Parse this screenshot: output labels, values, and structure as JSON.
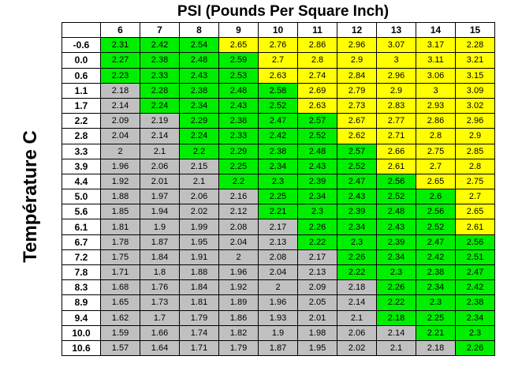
{
  "title": "PSI (Pounds Per Square Inch)",
  "y_axis_label": "Température C",
  "colors": {
    "green": "#00ee00",
    "yellow": "#ffff00",
    "gray": "#c0c0c0"
  },
  "psi": [
    "6",
    "7",
    "8",
    "9",
    "10",
    "11",
    "12",
    "13",
    "14",
    "15"
  ],
  "temps": [
    "-0.6",
    "0.0",
    "0.6",
    "1.1",
    "1.7",
    "2.2",
    "2.8",
    "3.3",
    "3.9",
    "4.4",
    "5.0",
    "5.6",
    "6.1",
    "6.7",
    "7.2",
    "7.8",
    "8.3",
    "8.9",
    "9.4",
    "10.0",
    "10.6"
  ],
  "cells": [
    [
      [
        "2.31",
        "g"
      ],
      [
        "2.42",
        "g"
      ],
      [
        "2.54",
        "g"
      ],
      [
        "2.65",
        "y"
      ],
      [
        "2.76",
        "y"
      ],
      [
        "2.86",
        "y"
      ],
      [
        "2.96",
        "y"
      ],
      [
        "3.07",
        "y"
      ],
      [
        "3.17",
        "y"
      ],
      [
        "2.28",
        "y"
      ]
    ],
    [
      [
        "2.27",
        "g"
      ],
      [
        "2.38",
        "g"
      ],
      [
        "2.48",
        "g"
      ],
      [
        "2.59",
        "g"
      ],
      [
        "2.7",
        "y"
      ],
      [
        "2.8",
        "y"
      ],
      [
        "2.9",
        "y"
      ],
      [
        "3",
        "y"
      ],
      [
        "3.11",
        "y"
      ],
      [
        "3.21",
        "y"
      ]
    ],
    [
      [
        "2.23",
        "g"
      ],
      [
        "2.33",
        "g"
      ],
      [
        "2.43",
        "g"
      ],
      [
        "2.53",
        "g"
      ],
      [
        "2.63",
        "y"
      ],
      [
        "2.74",
        "y"
      ],
      [
        "2.84",
        "y"
      ],
      [
        "2.96",
        "y"
      ],
      [
        "3.06",
        "y"
      ],
      [
        "3.15",
        "y"
      ]
    ],
    [
      [
        "2.18",
        "s"
      ],
      [
        "2.28",
        "g"
      ],
      [
        "2.38",
        "g"
      ],
      [
        "2.48",
        "g"
      ],
      [
        "2.58",
        "g"
      ],
      [
        "2.69",
        "y"
      ],
      [
        "2.79",
        "y"
      ],
      [
        "2.9",
        "y"
      ],
      [
        "3",
        "y"
      ],
      [
        "3.09",
        "y"
      ]
    ],
    [
      [
        "2.14",
        "s"
      ],
      [
        "2.24",
        "g"
      ],
      [
        "2.34",
        "g"
      ],
      [
        "2.43",
        "g"
      ],
      [
        "2.52",
        "g"
      ],
      [
        "2.63",
        "y"
      ],
      [
        "2.73",
        "y"
      ],
      [
        "2.83",
        "y"
      ],
      [
        "2.93",
        "y"
      ],
      [
        "3.02",
        "y"
      ]
    ],
    [
      [
        "2.09",
        "s"
      ],
      [
        "2.19",
        "s"
      ],
      [
        "2.29",
        "g"
      ],
      [
        "2.38",
        "g"
      ],
      [
        "2.47",
        "g"
      ],
      [
        "2.57",
        "g"
      ],
      [
        "2.67",
        "y"
      ],
      [
        "2.77",
        "y"
      ],
      [
        "2.86",
        "y"
      ],
      [
        "2.96",
        "y"
      ]
    ],
    [
      [
        "2.04",
        "s"
      ],
      [
        "2.14",
        "s"
      ],
      [
        "2.24",
        "g"
      ],
      [
        "2.33",
        "g"
      ],
      [
        "2.42",
        "g"
      ],
      [
        "2.52",
        "g"
      ],
      [
        "2.62",
        "y"
      ],
      [
        "2.71",
        "y"
      ],
      [
        "2.8",
        "y"
      ],
      [
        "2.9",
        "y"
      ]
    ],
    [
      [
        "2",
        "s"
      ],
      [
        "2.1",
        "s"
      ],
      [
        "2.2",
        "g"
      ],
      [
        "2.29",
        "g"
      ],
      [
        "2.38",
        "g"
      ],
      [
        "2.48",
        "g"
      ],
      [
        "2.57",
        "g"
      ],
      [
        "2.66",
        "y"
      ],
      [
        "2.75",
        "y"
      ],
      [
        "2.85",
        "y"
      ]
    ],
    [
      [
        "1.96",
        "s"
      ],
      [
        "2.06",
        "s"
      ],
      [
        "2.15",
        "s"
      ],
      [
        "2.25",
        "g"
      ],
      [
        "2.34",
        "g"
      ],
      [
        "2.43",
        "g"
      ],
      [
        "2.52",
        "g"
      ],
      [
        "2.61",
        "y"
      ],
      [
        "2.7",
        "y"
      ],
      [
        "2.8",
        "y"
      ]
    ],
    [
      [
        "1.92",
        "s"
      ],
      [
        "2.01",
        "s"
      ],
      [
        "2.1",
        "s"
      ],
      [
        "2.2",
        "g"
      ],
      [
        "2.3",
        "g"
      ],
      [
        "2.39",
        "g"
      ],
      [
        "2.47",
        "g"
      ],
      [
        "2.56",
        "g"
      ],
      [
        "2.65",
        "y"
      ],
      [
        "2.75",
        "y"
      ]
    ],
    [
      [
        "1.88",
        "s"
      ],
      [
        "1.97",
        "s"
      ],
      [
        "2.06",
        "s"
      ],
      [
        "2.16",
        "s"
      ],
      [
        "2.25",
        "g"
      ],
      [
        "2.34",
        "g"
      ],
      [
        "2.43",
        "g"
      ],
      [
        "2.52",
        "g"
      ],
      [
        "2.6",
        "g"
      ],
      [
        "2.7",
        "y"
      ]
    ],
    [
      [
        "1.85",
        "s"
      ],
      [
        "1.94",
        "s"
      ],
      [
        "2.02",
        "s"
      ],
      [
        "2.12",
        "s"
      ],
      [
        "2.21",
        "g"
      ],
      [
        "2.3",
        "g"
      ],
      [
        "2.39",
        "g"
      ],
      [
        "2.48",
        "g"
      ],
      [
        "2.56",
        "g"
      ],
      [
        "2.65",
        "y"
      ]
    ],
    [
      [
        "1.81",
        "s"
      ],
      [
        "1.9",
        "s"
      ],
      [
        "1.99",
        "s"
      ],
      [
        "2.08",
        "s"
      ],
      [
        "2.17",
        "s"
      ],
      [
        "2.26",
        "g"
      ],
      [
        "2.34",
        "g"
      ],
      [
        "2.43",
        "g"
      ],
      [
        "2.52",
        "g"
      ],
      [
        "2.61",
        "y"
      ]
    ],
    [
      [
        "1.78",
        "s"
      ],
      [
        "1.87",
        "s"
      ],
      [
        "1.95",
        "s"
      ],
      [
        "2.04",
        "s"
      ],
      [
        "2.13",
        "s"
      ],
      [
        "2.22",
        "g"
      ],
      [
        "2.3",
        "g"
      ],
      [
        "2.39",
        "g"
      ],
      [
        "2.47",
        "g"
      ],
      [
        "2.56",
        "g"
      ]
    ],
    [
      [
        "1.75",
        "s"
      ],
      [
        "1.84",
        "s"
      ],
      [
        "1.91",
        "s"
      ],
      [
        "2",
        "s"
      ],
      [
        "2.08",
        "s"
      ],
      [
        "2.17",
        "s"
      ],
      [
        "2.26",
        "g"
      ],
      [
        "2.34",
        "g"
      ],
      [
        "2.42",
        "g"
      ],
      [
        "2.51",
        "g"
      ]
    ],
    [
      [
        "1.71",
        "s"
      ],
      [
        "1.8",
        "s"
      ],
      [
        "1.88",
        "s"
      ],
      [
        "1.96",
        "s"
      ],
      [
        "2.04",
        "s"
      ],
      [
        "2.13",
        "s"
      ],
      [
        "2.22",
        "g"
      ],
      [
        "2.3",
        "g"
      ],
      [
        "2.38",
        "g"
      ],
      [
        "2.47",
        "g"
      ]
    ],
    [
      [
        "1.68",
        "s"
      ],
      [
        "1.76",
        "s"
      ],
      [
        "1.84",
        "s"
      ],
      [
        "1.92",
        "s"
      ],
      [
        "2",
        "s"
      ],
      [
        "2.09",
        "s"
      ],
      [
        "2.18",
        "s"
      ],
      [
        "2.26",
        "g"
      ],
      [
        "2.34",
        "g"
      ],
      [
        "2.42",
        "g"
      ]
    ],
    [
      [
        "1.65",
        "s"
      ],
      [
        "1.73",
        "s"
      ],
      [
        "1.81",
        "s"
      ],
      [
        "1.89",
        "s"
      ],
      [
        "1.96",
        "s"
      ],
      [
        "2.05",
        "s"
      ],
      [
        "2.14",
        "s"
      ],
      [
        "2.22",
        "g"
      ],
      [
        "2.3",
        "g"
      ],
      [
        "2.38",
        "g"
      ]
    ],
    [
      [
        "1.62",
        "s"
      ],
      [
        "1.7",
        "s"
      ],
      [
        "1.79",
        "s"
      ],
      [
        "1.86",
        "s"
      ],
      [
        "1.93",
        "s"
      ],
      [
        "2.01",
        "s"
      ],
      [
        "2.1",
        "s"
      ],
      [
        "2.18",
        "g"
      ],
      [
        "2.25",
        "g"
      ],
      [
        "2.34",
        "g"
      ]
    ],
    [
      [
        "1.59",
        "s"
      ],
      [
        "1.66",
        "s"
      ],
      [
        "1.74",
        "s"
      ],
      [
        "1.82",
        "s"
      ],
      [
        "1.9",
        "s"
      ],
      [
        "1.98",
        "s"
      ],
      [
        "2.06",
        "s"
      ],
      [
        "2.14",
        "s"
      ],
      [
        "2.21",
        "g"
      ],
      [
        "2.3",
        "g"
      ]
    ],
    [
      [
        "1.57",
        "s"
      ],
      [
        "1.64",
        "s"
      ],
      [
        "1.71",
        "s"
      ],
      [
        "1.79",
        "s"
      ],
      [
        "1.87",
        "s"
      ],
      [
        "1.95",
        "s"
      ],
      [
        "2.02",
        "s"
      ],
      [
        "2.1",
        "s"
      ],
      [
        "2.18",
        "s"
      ],
      [
        "2.26",
        "g"
      ]
    ]
  ]
}
